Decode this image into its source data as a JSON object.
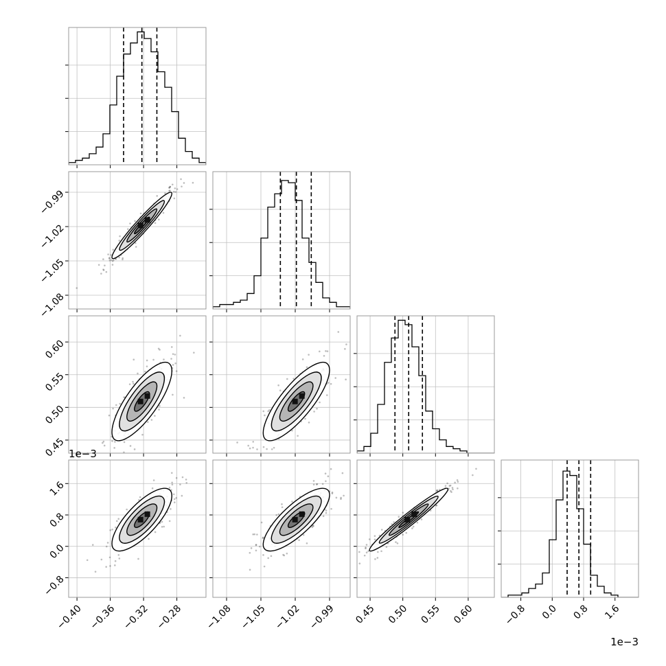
{
  "chart_data": {
    "type": "corner",
    "grid": true,
    "colors": {
      "contour": "#000000",
      "scatter": "#444444",
      "frame": "#999999",
      "grid": "#c0c0c0"
    },
    "parameters": [
      {
        "id": "p0",
        "ticks": [
          -0.4,
          -0.36,
          -0.32,
          -0.28
        ],
        "tick_labels": [
          "−0.40",
          "−0.36",
          "−0.32",
          "−0.28"
        ],
        "range": [
          -0.41,
          -0.245
        ],
        "quantiles": [
          -0.344,
          -0.322,
          -0.304
        ],
        "offset_label": ""
      },
      {
        "id": "p1",
        "ticks": [
          -1.08,
          -1.05,
          -1.02,
          -0.99
        ],
        "tick_labels": [
          "−1.08",
          "−1.05",
          "−1.02",
          "−0.99"
        ],
        "range": [
          -1.092,
          -0.972
        ],
        "quantiles": [
          -1.033,
          -1.019,
          -1.006
        ],
        "offset_label": ""
      },
      {
        "id": "p2",
        "ticks": [
          0.45,
          0.5,
          0.55,
          0.6
        ],
        "tick_labels": [
          "0.45",
          "0.50",
          "0.55",
          "0.60"
        ],
        "range": [
          0.43,
          0.64
        ],
        "quantiles": [
          0.488,
          0.509,
          0.53
        ],
        "offset_label": ""
      },
      {
        "id": "p3",
        "ticks": [
          -0.8,
          0.0,
          0.8,
          1.6
        ],
        "tick_labels": [
          "−0.8",
          "0.0",
          "0.8",
          "1.6"
        ],
        "range": [
          -1.3,
          2.2
        ],
        "quantiles": [
          0.38,
          0.68,
          0.98
        ],
        "offset_label": "1e−3"
      }
    ],
    "hist_counts": [
      [
        1,
        2,
        3,
        5,
        8,
        14,
        27,
        40,
        50,
        55,
        60,
        57,
        51,
        42,
        35,
        24,
        12,
        6,
        3,
        1
      ],
      [
        1,
        2,
        2,
        3,
        4,
        7,
        15,
        32,
        46,
        52,
        58,
        57,
        49,
        32,
        21,
        12,
        5,
        3,
        1,
        1
      ],
      [
        1,
        3,
        9,
        22,
        41,
        52,
        60,
        58,
        48,
        35,
        19,
        11,
        6,
        3,
        2,
        1,
        0,
        0,
        0,
        0
      ],
      [
        0,
        1,
        1,
        2,
        4,
        6,
        11,
        26,
        44,
        57,
        55,
        40,
        24,
        10,
        5,
        2,
        1,
        0,
        0,
        0
      ]
    ],
    "hist_max": 62,
    "hist_ticks": [
      15,
      30,
      45
    ],
    "pair_panels": [
      {
        "x": 0,
        "y": 1,
        "mean": [
          -0.322,
          -1.019
        ],
        "sd": [
          0.018,
          0.0145
        ],
        "rho": 0.96,
        "points": 220
      },
      {
        "x": 0,
        "y": 2,
        "mean": [
          -0.322,
          0.509
        ],
        "sd": [
          0.018,
          0.03
        ],
        "rho": 0.78,
        "points": 190
      },
      {
        "x": 1,
        "y": 2,
        "mean": [
          -1.019,
          0.509
        ],
        "sd": [
          0.0145,
          0.03
        ],
        "rho": 0.8,
        "points": 190
      },
      {
        "x": 0,
        "y": 3,
        "mean": [
          -0.322,
          0.68
        ],
        "sd": [
          0.018,
          0.4
        ],
        "rho": 0.76,
        "points": 190
      },
      {
        "x": 1,
        "y": 3,
        "mean": [
          -1.019,
          0.68
        ],
        "sd": [
          0.0145,
          0.4
        ],
        "rho": 0.79,
        "points": 190
      },
      {
        "x": 2,
        "y": 3,
        "mean": [
          0.509,
          0.68
        ],
        "sd": [
          0.03,
          0.4
        ],
        "rho": 0.97,
        "points": 220
      }
    ]
  }
}
